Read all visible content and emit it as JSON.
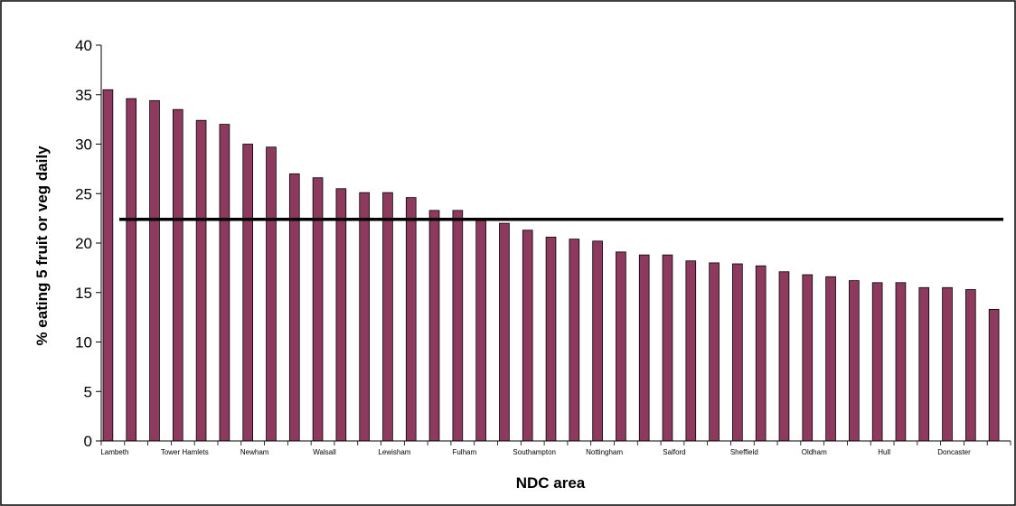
{
  "chart_data": {
    "type": "bar",
    "title": "",
    "xlabel": "NDC area",
    "ylabel": "% eating 5 fruit or veg daily",
    "ylim": [
      0,
      40
    ],
    "yticks": [
      0,
      5,
      10,
      15,
      20,
      25,
      30,
      35,
      40
    ],
    "yticks_text": [
      "0",
      "5",
      "10",
      "15",
      "20",
      "25",
      "30",
      "35",
      "40"
    ],
    "grid": false,
    "legend": "none",
    "bar_color": "#8e3a5e",
    "reference_line": {
      "value": 22.4,
      "color": "#000000"
    },
    "category_labels": [
      {
        "index": 0,
        "text": "Lambeth"
      },
      {
        "index": 3,
        "text": "Tower Hamlets"
      },
      {
        "index": 6,
        "text": "Newham"
      },
      {
        "index": 9,
        "text": "Walsall"
      },
      {
        "index": 12,
        "text": "Lewisham"
      },
      {
        "index": 15,
        "text": "Fulham"
      },
      {
        "index": 18,
        "text": "Southampton"
      },
      {
        "index": 21,
        "text": "Nottingham"
      },
      {
        "index": 24,
        "text": "Salford"
      },
      {
        "index": 27,
        "text": "Sheffield"
      },
      {
        "index": 30,
        "text": "Oldham"
      },
      {
        "index": 33,
        "text": "Hull"
      },
      {
        "index": 36,
        "text": "Doncaster"
      }
    ],
    "values": [
      35.5,
      34.6,
      34.4,
      33.5,
      32.4,
      32.0,
      30.0,
      29.7,
      27.0,
      26.6,
      25.5,
      25.1,
      25.1,
      24.6,
      23.3,
      23.3,
      22.3,
      22.0,
      21.3,
      20.6,
      20.4,
      20.2,
      19.1,
      18.8,
      18.8,
      18.2,
      18.0,
      17.9,
      17.7,
      17.1,
      16.8,
      16.6,
      16.2,
      16.0,
      16.0,
      15.5,
      15.5,
      15.3,
      13.3
    ]
  }
}
